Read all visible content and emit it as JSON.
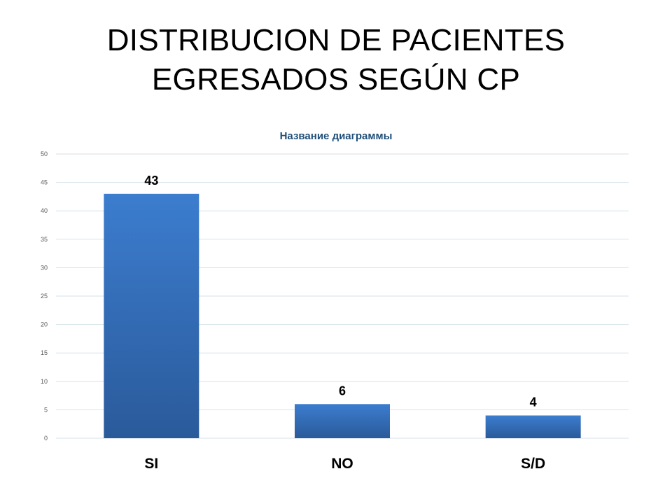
{
  "slide": {
    "title_line1": "DISTRIBUCION DE PACIENTES",
    "title_line2": "EGRESADOS SEGÚN CP"
  },
  "colors": {
    "bar_top": "#3c7dcf",
    "bar_bottom": "#2a5a9a",
    "chart_title": "#1f4e79",
    "grid": "#d6e2ea",
    "tick_label": "#595959"
  },
  "chart_data": {
    "type": "bar",
    "title": "Название диаграммы",
    "categories": [
      "SI",
      "NO",
      "S/D"
    ],
    "values": [
      43,
      6,
      4
    ],
    "data_labels": [
      "43",
      "6",
      "4"
    ],
    "xlabel": "",
    "ylabel": "",
    "ylim": [
      0,
      50
    ],
    "yticks": [
      0,
      5,
      10,
      15,
      20,
      25,
      30,
      35,
      40,
      45,
      50
    ],
    "grid": true,
    "legend": "none"
  }
}
